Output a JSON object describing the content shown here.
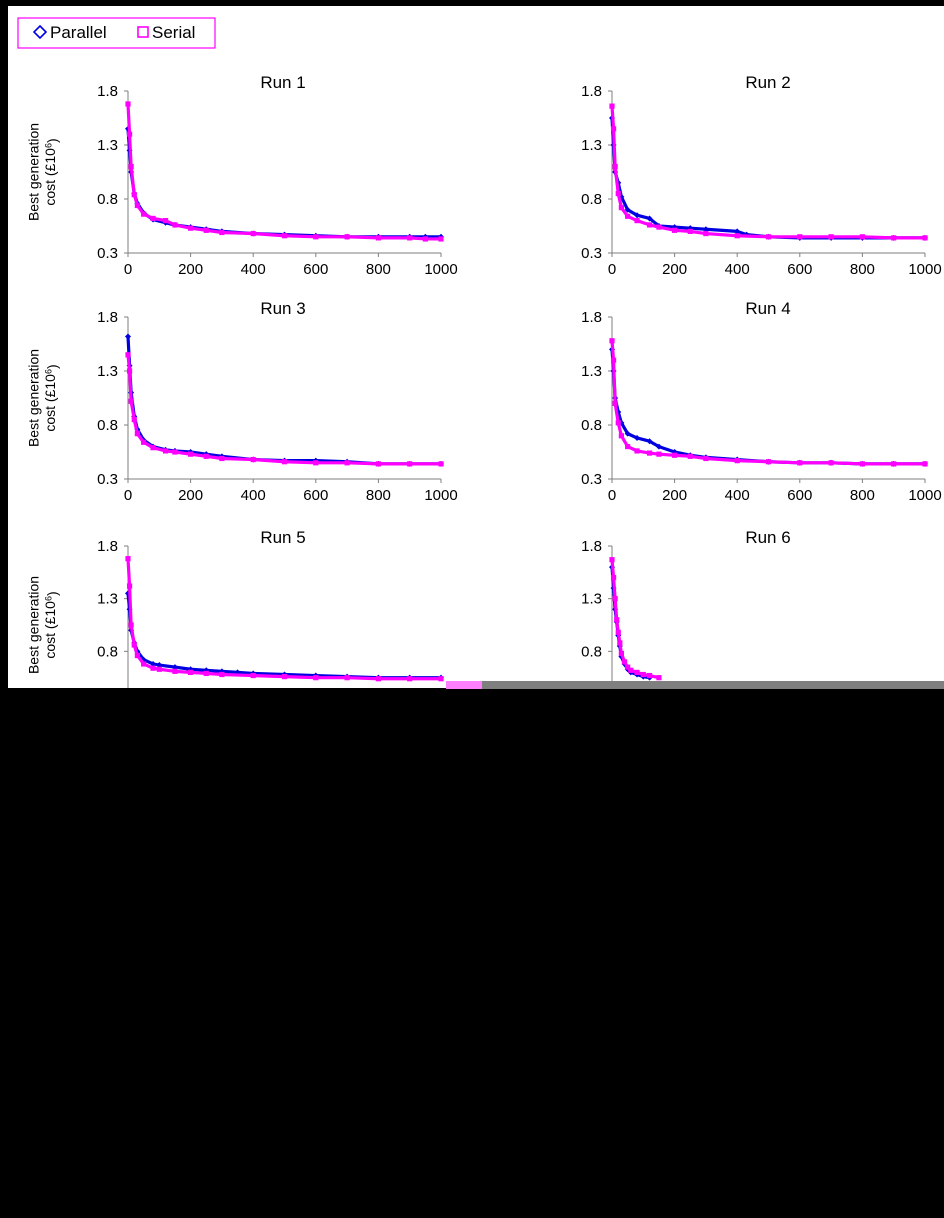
{
  "legend": {
    "entries": [
      {
        "label": "Parallel",
        "marker": "diamond",
        "color": "#0000e0"
      },
      {
        "label": "Serial",
        "marker": "square",
        "color": "#ff00ff"
      }
    ]
  },
  "axes": {
    "ylabel_line1": "Best generation",
    "ylabel_line2": "cost (£10",
    "ylabel_sup": "6",
    "ylabel_close": ")",
    "yticks": [
      "1.8",
      "1.3",
      "0.8",
      "0.3"
    ],
    "xticks": [
      "0",
      "200",
      "400",
      "600",
      "800",
      "1000"
    ]
  },
  "chart_data": [
    {
      "type": "scatter",
      "title": "Run 1",
      "xlim": [
        0,
        1000
      ],
      "ylim": [
        0.3,
        1.8
      ],
      "series": [
        {
          "name": "Parallel",
          "color": "#0000e0",
          "x": [
            0,
            5,
            10,
            20,
            30,
            50,
            80,
            120,
            150,
            200,
            250,
            300,
            400,
            500,
            600,
            700,
            800,
            900,
            950,
            1000
          ],
          "y": [
            1.45,
            1.25,
            1.05,
            0.85,
            0.76,
            0.67,
            0.61,
            0.58,
            0.56,
            0.54,
            0.52,
            0.5,
            0.48,
            0.47,
            0.46,
            0.45,
            0.45,
            0.45,
            0.45,
            0.45
          ]
        },
        {
          "name": "Serial",
          "color": "#ff00ff",
          "x": [
            0,
            5,
            10,
            20,
            30,
            50,
            80,
            120,
            150,
            200,
            250,
            300,
            400,
            500,
            600,
            700,
            800,
            900,
            950,
            1000
          ],
          "y": [
            1.68,
            1.4,
            1.1,
            0.84,
            0.74,
            0.66,
            0.62,
            0.6,
            0.56,
            0.53,
            0.51,
            0.49,
            0.48,
            0.46,
            0.45,
            0.45,
            0.44,
            0.44,
            0.43,
            0.43
          ]
        }
      ]
    },
    {
      "type": "scatter",
      "title": "Run 2",
      "xlim": [
        0,
        1000
      ],
      "ylim": [
        0.3,
        1.8
      ],
      "series": [
        {
          "name": "Parallel",
          "color": "#0000e0",
          "x": [
            0,
            5,
            10,
            20,
            30,
            50,
            80,
            120,
            150,
            200,
            250,
            300,
            400,
            430,
            500,
            600,
            700,
            800,
            900,
            1000
          ],
          "y": [
            1.55,
            1.3,
            1.05,
            0.95,
            0.82,
            0.7,
            0.65,
            0.62,
            0.55,
            0.54,
            0.53,
            0.52,
            0.5,
            0.47,
            0.45,
            0.44,
            0.44,
            0.44,
            0.44,
            0.44
          ]
        },
        {
          "name": "Serial",
          "color": "#ff00ff",
          "x": [
            0,
            5,
            10,
            20,
            30,
            50,
            80,
            120,
            150,
            200,
            250,
            300,
            400,
            500,
            600,
            700,
            800,
            900,
            1000
          ],
          "y": [
            1.66,
            1.45,
            1.1,
            0.85,
            0.72,
            0.64,
            0.6,
            0.56,
            0.54,
            0.51,
            0.5,
            0.48,
            0.46,
            0.45,
            0.45,
            0.45,
            0.45,
            0.44,
            0.44
          ]
        }
      ]
    },
    {
      "type": "scatter",
      "title": "Run 3",
      "xlim": [
        0,
        1000
      ],
      "ylim": [
        0.3,
        1.8
      ],
      "series": [
        {
          "name": "Parallel",
          "color": "#0000e0",
          "x": [
            0,
            5,
            10,
            20,
            30,
            50,
            80,
            120,
            150,
            200,
            250,
            300,
            400,
            500,
            600,
            700,
            800,
            900,
            1000
          ],
          "y": [
            1.62,
            1.35,
            1.1,
            0.88,
            0.76,
            0.66,
            0.6,
            0.57,
            0.56,
            0.55,
            0.53,
            0.51,
            0.48,
            0.47,
            0.47,
            0.46,
            0.44,
            0.44,
            0.44
          ]
        },
        {
          "name": "Serial",
          "color": "#ff00ff",
          "x": [
            0,
            5,
            10,
            20,
            30,
            50,
            80,
            120,
            150,
            200,
            250,
            300,
            400,
            500,
            600,
            700,
            800,
            900,
            1000
          ],
          "y": [
            1.45,
            1.3,
            1.02,
            0.85,
            0.72,
            0.64,
            0.59,
            0.56,
            0.55,
            0.53,
            0.51,
            0.49,
            0.48,
            0.46,
            0.45,
            0.45,
            0.44,
            0.44,
            0.44
          ]
        }
      ]
    },
    {
      "type": "scatter",
      "title": "Run 4",
      "xlim": [
        0,
        1000
      ],
      "ylim": [
        0.3,
        1.8
      ],
      "series": [
        {
          "name": "Parallel",
          "color": "#0000e0",
          "x": [
            0,
            5,
            10,
            20,
            30,
            50,
            80,
            120,
            150,
            200,
            250,
            300,
            400,
            500,
            600,
            700,
            800,
            900,
            1000
          ],
          "y": [
            1.5,
            1.3,
            1.05,
            0.92,
            0.82,
            0.72,
            0.68,
            0.65,
            0.6,
            0.55,
            0.52,
            0.5,
            0.48,
            0.46,
            0.45,
            0.45,
            0.44,
            0.44,
            0.44
          ]
        },
        {
          "name": "Serial",
          "color": "#ff00ff",
          "x": [
            0,
            5,
            10,
            20,
            30,
            50,
            80,
            120,
            150,
            200,
            250,
            300,
            400,
            500,
            600,
            700,
            800,
            900,
            1000
          ],
          "y": [
            1.58,
            1.4,
            1.0,
            0.82,
            0.7,
            0.6,
            0.56,
            0.54,
            0.53,
            0.52,
            0.51,
            0.49,
            0.47,
            0.46,
            0.45,
            0.45,
            0.44,
            0.44,
            0.44
          ]
        }
      ]
    },
    {
      "type": "scatter",
      "title": "Run 5",
      "xlim": [
        0,
        1000
      ],
      "ylim": [
        0.3,
        1.8
      ],
      "series": [
        {
          "name": "Parallel",
          "color": "#0000e0",
          "x": [
            0,
            5,
            10,
            20,
            30,
            50,
            80,
            100,
            150,
            200,
            250,
            300,
            350,
            400,
            500,
            600,
            700,
            800,
            900,
            1000
          ],
          "y": [
            1.35,
            1.2,
            1.0,
            0.88,
            0.8,
            0.72,
            0.68,
            0.67,
            0.65,
            0.63,
            0.62,
            0.61,
            0.6,
            0.59,
            0.58,
            0.57,
            0.56,
            0.55,
            0.55,
            0.55
          ]
        },
        {
          "name": "Serial",
          "color": "#ff00ff",
          "x": [
            0,
            5,
            10,
            20,
            30,
            50,
            80,
            100,
            150,
            200,
            250,
            300,
            400,
            500,
            600,
            700,
            800,
            900,
            1000
          ],
          "y": [
            1.68,
            1.42,
            1.05,
            0.86,
            0.76,
            0.68,
            0.64,
            0.63,
            0.61,
            0.6,
            0.59,
            0.58,
            0.57,
            0.56,
            0.55,
            0.55,
            0.54,
            0.54,
            0.54
          ]
        }
      ]
    },
    {
      "type": "scatter",
      "title": "Run 6",
      "xlim": [
        0,
        1000
      ],
      "ylim": [
        0.3,
        1.8
      ],
      "series": [
        {
          "name": "Parallel",
          "color": "#0000e0",
          "x": [
            0,
            5,
            10,
            15,
            20,
            25,
            30,
            40,
            50,
            60,
            80,
            100,
            120
          ],
          "y": [
            1.6,
            1.4,
            1.2,
            1.08,
            0.95,
            0.85,
            0.75,
            0.68,
            0.63,
            0.6,
            0.58,
            0.56,
            0.55
          ]
        },
        {
          "name": "Serial",
          "color": "#ff00ff",
          "x": [
            0,
            5,
            10,
            15,
            20,
            25,
            30,
            40,
            50,
            60,
            80,
            100,
            120,
            150
          ],
          "y": [
            1.67,
            1.5,
            1.3,
            1.1,
            0.98,
            0.88,
            0.78,
            0.7,
            0.65,
            0.62,
            0.6,
            0.58,
            0.57,
            0.55
          ]
        }
      ]
    }
  ]
}
